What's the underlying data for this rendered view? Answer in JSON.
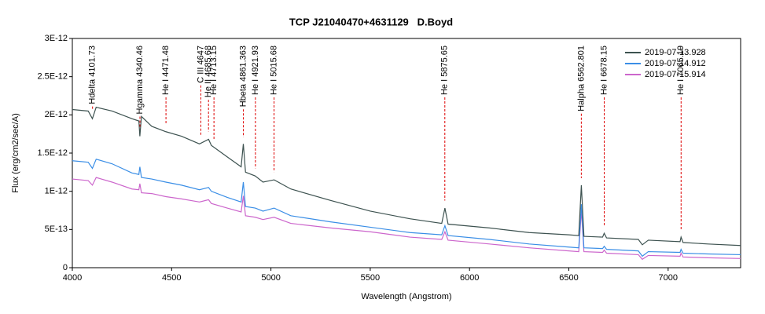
{
  "chart_data": {
    "type": "line",
    "title": "TCP J21040470+4631129   D.Boyd",
    "x_label": "Wavelength (Angstrom)",
    "y_label": "Flux (erg/cm2/sec/A)",
    "xlim": [
      4000,
      7365
    ],
    "ylim": [
      0,
      3e-12
    ],
    "xticks": [
      4000,
      4500,
      5000,
      5500,
      6000,
      6500,
      7000
    ],
    "yticks": [
      {
        "value": 0,
        "label": "0"
      },
      {
        "value": 5e-13,
        "label": "5E-13"
      },
      {
        "value": 1e-12,
        "label": "1E-12"
      },
      {
        "value": 1.5e-12,
        "label": "1.5E-12"
      },
      {
        "value": 2e-12,
        "label": "2E-12"
      },
      {
        "value": 2.5e-12,
        "label": "2.5E-12"
      },
      {
        "value": 3e-12,
        "label": "3E-12"
      }
    ],
    "legend": "top-right",
    "x": [
      4000,
      4080,
      4101,
      4120,
      4200,
      4300,
      4335,
      4340,
      4348,
      4400,
      4471,
      4550,
      4640,
      4686,
      4700,
      4780,
      4850,
      4861,
      4872,
      4921,
      4960,
      5016,
      5100,
      5300,
      5500,
      5700,
      5860,
      5876,
      5892,
      6100,
      6300,
      6500,
      6550,
      6563,
      6576,
      6670,
      6678,
      6690,
      6850,
      6870,
      6900,
      7060,
      7065,
      7075,
      7200,
      7365
    ],
    "series": [
      {
        "name": "2019-07-13.928",
        "color": "#3d5250",
        "values": [
          2.07e-12,
          2.05e-12,
          1.95e-12,
          2.1e-12,
          2.05e-12,
          1.95e-12,
          1.92e-12,
          1.72e-12,
          1.98e-12,
          1.85e-12,
          1.78e-12,
          1.72e-12,
          1.62e-12,
          1.68e-12,
          1.6e-12,
          1.45e-12,
          1.32e-12,
          1.62e-12,
          1.25e-12,
          1.2e-12,
          1.12e-12,
          1.15e-12,
          1.03e-12,
          8.8e-13,
          7.4e-13,
          6.4e-13,
          5.8e-13,
          7.8e-13,
          5.7e-13,
          5.2e-13,
          4.6e-13,
          4.3e-13,
          4.2e-13,
          1.08e-12,
          4.1e-13,
          4e-13,
          4.5e-13,
          3.9e-13,
          3.7e-13,
          3e-13,
          3.6e-13,
          3.4e-13,
          4e-13,
          3.3e-13,
          3.1e-13,
          2.9e-13
        ]
      },
      {
        "name": "2019-07-14.912",
        "color": "#3a8ee6",
        "values": [
          1.4e-12,
          1.38e-12,
          1.3e-12,
          1.42e-12,
          1.36e-12,
          1.24e-12,
          1.22e-12,
          1.32e-12,
          1.18e-12,
          1.16e-12,
          1.12e-12,
          1.08e-12,
          1.02e-12,
          1.05e-12,
          1e-12,
          9.2e-13,
          8.6e-13,
          1.12e-12,
          8e-13,
          7.8e-13,
          7.4e-13,
          7.8e-13,
          6.8e-13,
          6e-13,
          5.3e-13,
          4.6e-13,
          4.3e-13,
          5.5e-13,
          4.2e-13,
          3.7e-13,
          3.1e-13,
          2.7e-13,
          2.6e-13,
          8.3e-13,
          2.6e-13,
          2.5e-13,
          2.8e-13,
          2.4e-13,
          2.2e-13,
          1.5e-13,
          2.1e-13,
          2e-13,
          2.4e-13,
          1.9e-13,
          1.8e-13,
          1.7e-13
        ]
      },
      {
        "name": "2019-07-15.914",
        "color": "#cc66cc",
        "values": [
          1.16e-12,
          1.14e-12,
          1.08e-12,
          1.18e-12,
          1.12e-12,
          1.03e-12,
          1.02e-12,
          1.1e-12,
          9.8e-13,
          9.7e-13,
          9.3e-13,
          9e-13,
          8.6e-13,
          8.9e-13,
          8.4e-13,
          7.8e-13,
          7.3e-13,
          9.4e-13,
          6.8e-13,
          6.6e-13,
          6.3e-13,
          6.6e-13,
          5.8e-13,
          5.2e-13,
          4.7e-13,
          4e-13,
          3.7e-13,
          4.7e-13,
          3.6e-13,
          3.1e-13,
          2.6e-13,
          2.2e-13,
          2.1e-13,
          7.5e-13,
          2.1e-13,
          2e-13,
          2.3e-13,
          1.9e-13,
          1.7e-13,
          1.1e-13,
          1.6e-13,
          1.5e-13,
          1.9e-13,
          1.4e-13,
          1.3e-13,
          1.2e-13
        ]
      }
    ],
    "annotations": [
      {
        "label": "Hdelta 4101.73",
        "x": 4101.73
      },
      {
        "label": "Hgamma 4340.46",
        "x": 4340.46
      },
      {
        "label": "He I 4471.48",
        "x": 4471.48
      },
      {
        "label": "C III 4647",
        "x": 4647
      },
      {
        "label": "He II 4685.68",
        "x": 4685.68
      },
      {
        "label": "He I 4713.15",
        "x": 4713.15
      },
      {
        "label": "Hbeta 4861.363",
        "x": 4861.363
      },
      {
        "label": "He I 4921.93",
        "x": 4921.93
      },
      {
        "label": "He I 5015.68",
        "x": 5015.68
      },
      {
        "label": "He I 5875.65",
        "x": 5875.65
      },
      {
        "label": "Halpha 6562.801",
        "x": 6562.801
      },
      {
        "label": "He I 6678.15",
        "x": 6678.15
      },
      {
        "label": "He I 7065.19",
        "x": 7065.19
      }
    ],
    "annotation_color": "#dd0000"
  }
}
